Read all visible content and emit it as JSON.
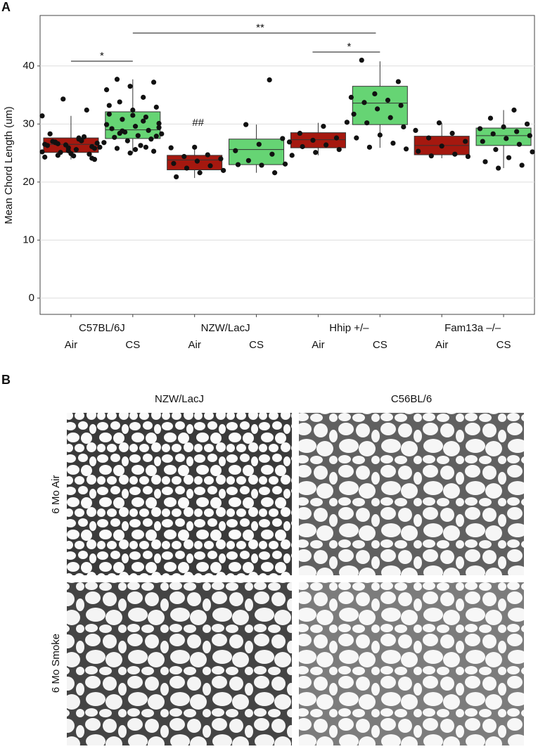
{
  "chart_data": {
    "type": "box",
    "panel_label": "A",
    "y_label": "Mean Chord Length (um)",
    "groups": [
      "C57BL/6J",
      "NZW/LacJ",
      "Hhip +/–",
      "Fam13a –/–"
    ],
    "ylim": [
      -2.8,
      48.7
    ],
    "yticks": [
      0,
      10,
      20,
      30,
      40
    ],
    "grid": true,
    "annotations": [
      "*",
      "**",
      "*",
      "##"
    ],
    "series": [
      {
        "name": "Air",
        "color": "#a5180f",
        "boxes": [
          {
            "whisker_low": 23.9,
            "q1": 25.1,
            "median": 26.5,
            "q3": 27.6,
            "whisker_high": 31.4,
            "points": [
              31.4,
              27.6,
              26.9,
              26.1,
              25.4,
              24.3,
              27.2,
              26.6,
              25.8,
              24.9,
              26.3,
              27.8,
              25.1,
              26.7,
              24.5,
              28.3,
              32.4,
              34.3,
              26.0,
              25.6,
              27.0,
              24.8,
              26.4,
              25.2,
              27.4,
              26.8,
              24.1,
              25.9,
              26.5,
              27.1,
              24.6,
              23.9
            ]
          },
          {
            "whisker_low": 20.7,
            "q1": 22.1,
            "median": 23.8,
            "q3": 24.6,
            "whisker_high": 25.9,
            "points": [
              26.0,
              25.9,
              24.7,
              24.4,
              24.0,
              23.6,
              23.2,
              22.8,
              22.4,
              22.0,
              21.6,
              20.9
            ]
          },
          {
            "whisker_low": 24.6,
            "q1": 25.9,
            "median": 27.3,
            "q3": 28.5,
            "whisker_high": 30.2,
            "points": [
              30.3,
              29.6,
              28.4,
              27.6,
              27.2,
              26.9,
              26.4,
              26.1,
              25.6,
              25.1,
              24.6
            ]
          },
          {
            "whisker_low": 24.1,
            "q1": 24.7,
            "median": 26.3,
            "q3": 27.9,
            "whisker_high": 30.2,
            "points": [
              30.2,
              28.9,
              28.4,
              27.6,
              27.0,
              26.2,
              25.3,
              24.8,
              24.5,
              24.4
            ]
          }
        ]
      },
      {
        "name": "CS",
        "color": "#66d474",
        "boxes": [
          {
            "whisker_low": 25.0,
            "q1": 27.5,
            "median": 29.0,
            "q3": 32.1,
            "whisker_high": 37.7,
            "points": [
              37.7,
              37.2,
              36.5,
              35.9,
              34.6,
              33.8,
              32.9,
              32.4,
              31.7,
              31.2,
              30.8,
              30.1,
              29.6,
              29.2,
              28.9,
              28.6,
              28.3,
              28.0,
              27.7,
              27.4,
              27.1,
              26.8,
              26.3,
              25.8,
              25.3,
              25.0,
              29.9,
              30.5,
              28.4,
              27.9,
              31.5,
              33.2,
              26.0,
              28.8,
              29.4,
              25.6
            ]
          },
          {
            "whisker_low": 21.6,
            "q1": 23.0,
            "median": 25.6,
            "q3": 27.4,
            "whisker_high": 29.9,
            "points": [
              37.6,
              29.9,
              27.5,
              26.5,
              25.4,
              24.8,
              23.7,
              23.1,
              22.9,
              23.0,
              21.6
            ]
          },
          {
            "whisker_low": 25.9,
            "q1": 29.9,
            "median": 33.6,
            "q3": 36.5,
            "whisker_high": 40.8,
            "points": [
              41.0,
              37.3,
              35.2,
              34.6,
              34.1,
              33.7,
              33.2,
              32.6,
              31.7,
              31.1,
              30.2,
              29.5,
              28.1,
              27.6,
              26.7,
              26.0,
              25.7
            ]
          },
          {
            "whisker_low": 22.4,
            "q1": 26.3,
            "median": 28.0,
            "q3": 29.3,
            "whisker_high": 32.4,
            "points": [
              32.4,
              31.0,
              30.0,
              29.5,
              29.2,
              28.7,
              28.3,
              28.0,
              27.5,
              27.0,
              26.5,
              25.6,
              25.2,
              24.2,
              23.5,
              22.9,
              22.4
            ]
          }
        ]
      }
    ]
  },
  "panel_b": {
    "label": "B",
    "columns": [
      "NZW/LacJ",
      "C56BL/6"
    ],
    "rows": [
      "6 Mo Air",
      "6 Mo Smoke"
    ]
  }
}
